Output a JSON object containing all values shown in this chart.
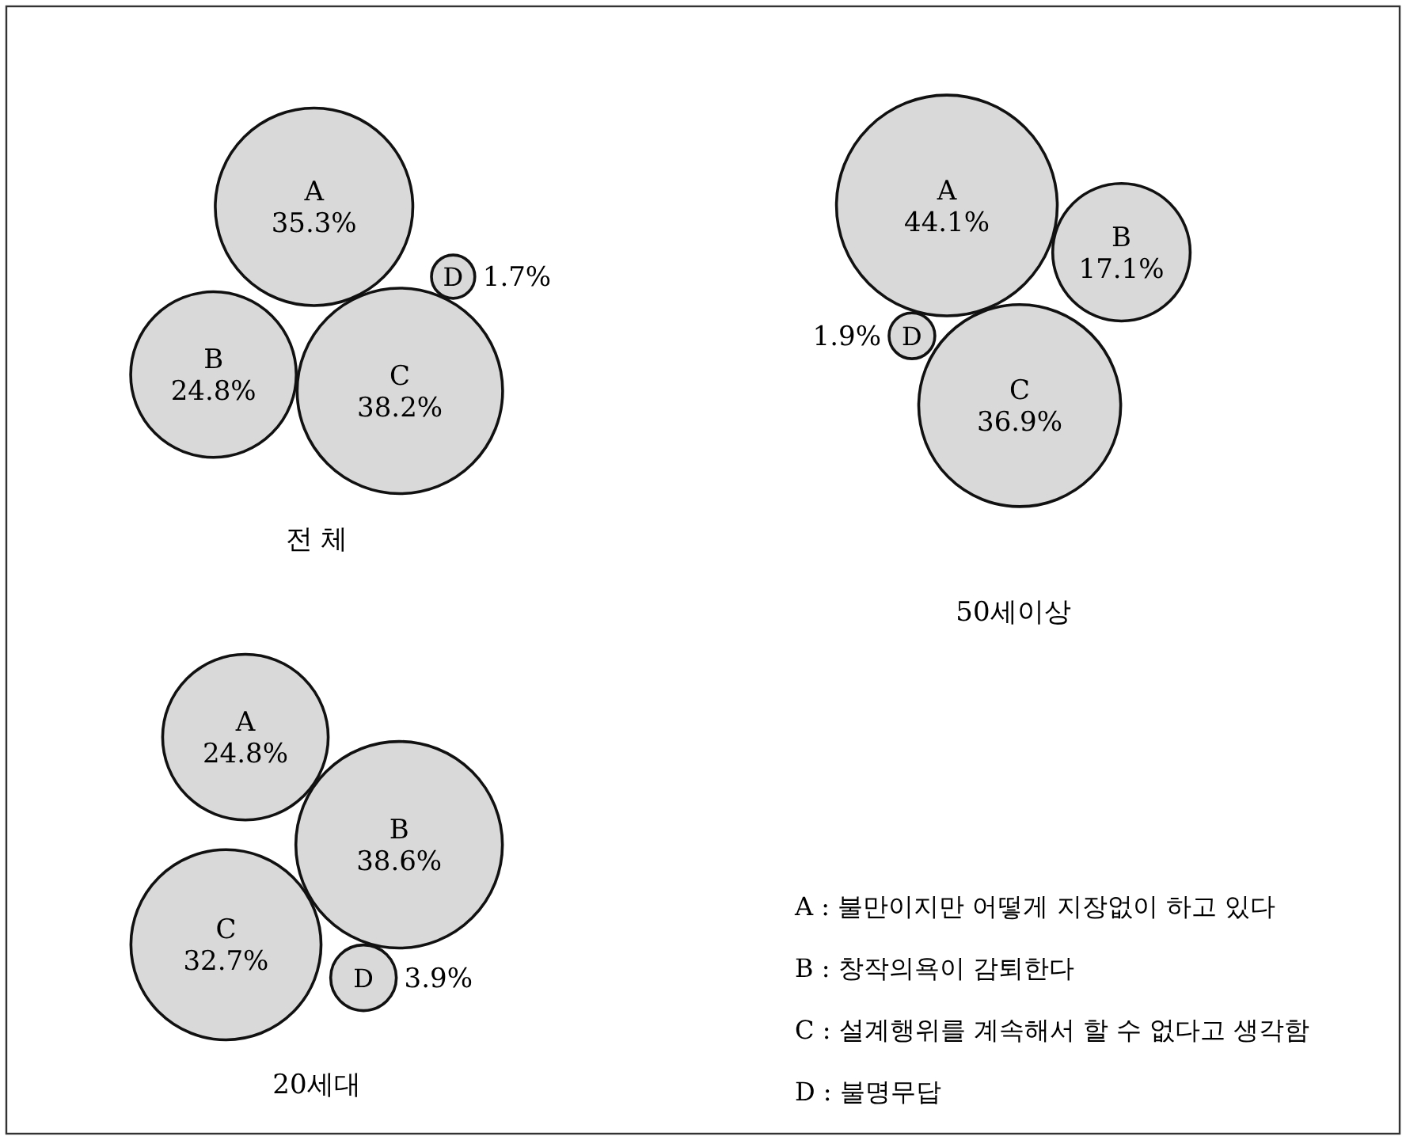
{
  "chart_data": [
    {
      "type": "other",
      "title": "전 체",
      "categories": [
        "A",
        "B",
        "C",
        "D"
      ],
      "values": [
        35.3,
        24.8,
        38.2,
        1.7
      ],
      "value_labels": [
        "35.3%",
        "24.8%",
        "38.2%",
        "1.7%"
      ],
      "color": "#d9d9d9"
    },
    {
      "type": "other",
      "title": "50세이상",
      "categories": [
        "A",
        "B",
        "C",
        "D"
      ],
      "values": [
        44.1,
        17.1,
        36.9,
        1.9
      ],
      "value_labels": [
        "44.1%",
        "17.1%",
        "36.9%",
        "1.9%"
      ],
      "color": "#d9d9d9"
    },
    {
      "type": "other",
      "title": "20세대",
      "categories": [
        "A",
        "B",
        "C",
        "D"
      ],
      "values": [
        24.8,
        38.6,
        32.7,
        3.9
      ],
      "value_labels": [
        "24.8%",
        "38.6%",
        "32.7%",
        "3.9%"
      ],
      "color": "#d9d9d9"
    },
    {
      "type": "other",
      "annotations": [
        "A : 불만이지만 어떻게 지장없이 하고 있다",
        "B : 창작의욕이 감퇴한다",
        "C : 설계행위를 계속해서 할 수 없다고 생각함",
        "D : 불명무답"
      ]
    }
  ]
}
